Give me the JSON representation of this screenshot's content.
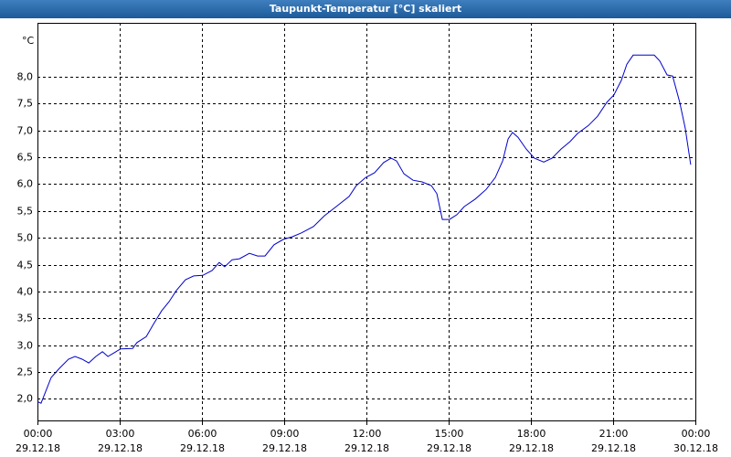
{
  "chart_data": {
    "type": "line",
    "title": "Taupunkt-Temperatur [°C] skaliert",
    "y_unit": "°C",
    "xlim": [
      0,
      24
    ],
    "ylim": [
      1.6,
      9.0
    ],
    "xticks": [
      {
        "value": 0,
        "label": "00:00"
      },
      {
        "value": 3,
        "label": "03:00"
      },
      {
        "value": 6,
        "label": "06:00"
      },
      {
        "value": 9,
        "label": "09:00"
      },
      {
        "value": 12,
        "label": "12:00"
      },
      {
        "value": 15,
        "label": "15:00"
      },
      {
        "value": 18,
        "label": "18:00"
      },
      {
        "value": 21,
        "label": "21:00"
      },
      {
        "value": 24,
        "label": "00:00"
      }
    ],
    "xtick_dates": [
      "29.12.18",
      "29.12.18",
      "29.12.18",
      "29.12.18",
      "29.12.18",
      "29.12.18",
      "29.12.18",
      "29.12.18",
      "30.12.18"
    ],
    "yticks": [
      {
        "value": 2,
        "label": "2,0"
      },
      {
        "value": 2.5,
        "label": "2,5"
      },
      {
        "value": 3,
        "label": "3,0"
      },
      {
        "value": 3.5,
        "label": "3,5"
      },
      {
        "value": 4,
        "label": "4,0"
      },
      {
        "value": 4.5,
        "label": "4,5"
      },
      {
        "value": 5,
        "label": "5,0"
      },
      {
        "value": 5.5,
        "label": "5,5"
      },
      {
        "value": 6,
        "label": "6,0"
      },
      {
        "value": 6.5,
        "label": "6,5"
      },
      {
        "value": 7,
        "label": "7,0"
      },
      {
        "value": 7.5,
        "label": "7,5"
      },
      {
        "value": 8,
        "label": "8,0"
      }
    ],
    "grid": true,
    "series": [
      {
        "color": "#0000cc",
        "x": [
          0,
          0.13,
          0.3,
          0.5,
          0.8,
          1.13,
          1.37,
          1.63,
          1.87,
          2.13,
          2.37,
          2.57,
          2.8,
          3.03,
          3.47,
          3.63,
          3.97,
          4.23,
          4.53,
          4.8,
          5.07,
          5.4,
          5.7,
          6.03,
          6.37,
          6.63,
          6.83,
          7.1,
          7.37,
          7.73,
          8.03,
          8.3,
          8.63,
          8.97,
          9.3,
          9.63,
          10.07,
          10.47,
          10.9,
          11.37,
          11.63,
          11.97,
          12.3,
          12.63,
          12.9,
          13.1,
          13.37,
          13.7,
          14.03,
          14.37,
          14.57,
          14.77,
          15.03,
          15.3,
          15.57,
          15.97,
          16.37,
          16.7,
          16.97,
          17.17,
          17.33,
          17.53,
          17.83,
          18.13,
          18.47,
          18.77,
          19.1,
          19.43,
          19.7,
          20.1,
          20.43,
          20.77,
          21.03,
          21.3,
          21.5,
          21.73,
          22.13,
          22.5,
          22.7,
          22.97,
          23.17,
          23.43,
          23.63,
          23.83
        ],
        "values": [
          1.95,
          1.92,
          2.14,
          2.4,
          2.57,
          2.74,
          2.79,
          2.74,
          2.67,
          2.79,
          2.88,
          2.79,
          2.86,
          2.93,
          2.94,
          3.05,
          3.16,
          3.39,
          3.64,
          3.81,
          4.02,
          4.22,
          4.29,
          4.3,
          4.39,
          4.54,
          4.46,
          4.59,
          4.61,
          4.71,
          4.66,
          4.66,
          4.87,
          4.97,
          5.02,
          5.09,
          5.21,
          5.41,
          5.58,
          5.77,
          5.97,
          6.12,
          6.21,
          6.4,
          6.48,
          6.43,
          6.19,
          6.07,
          6.04,
          5.97,
          5.82,
          5.34,
          5.34,
          5.43,
          5.58,
          5.72,
          5.9,
          6.12,
          6.43,
          6.84,
          6.96,
          6.87,
          6.65,
          6.48,
          6.41,
          6.48,
          6.65,
          6.79,
          6.94,
          7.09,
          7.26,
          7.52,
          7.66,
          7.93,
          8.23,
          8.4,
          8.4,
          8.4,
          8.29,
          8.03,
          8.01,
          7.52,
          7.04,
          6.36
        ]
      }
    ]
  }
}
